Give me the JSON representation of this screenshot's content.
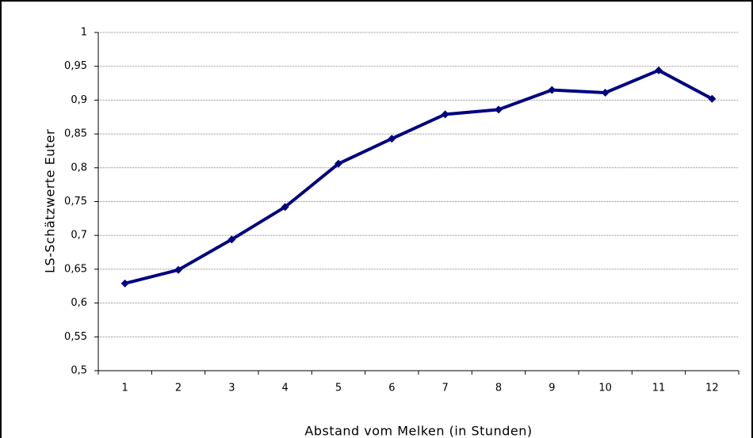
{
  "chart_data": {
    "type": "line",
    "categories": [
      "1",
      "2",
      "3",
      "4",
      "5",
      "6",
      "7",
      "8",
      "9",
      "10",
      "11",
      "12"
    ],
    "series": [
      {
        "name": "LS-Schätzwerte Euter",
        "color": "#000080",
        "values": [
          0.629,
          0.649,
          0.694,
          0.742,
          0.806,
          0.843,
          0.879,
          0.886,
          0.915,
          0.911,
          0.944,
          0.902
        ]
      }
    ],
    "ylim": [
      0.5,
      1
    ],
    "yticks": [
      {
        "value": 0.5,
        "label": "0,5"
      },
      {
        "value": 0.55,
        "label": "0,55"
      },
      {
        "value": 0.6,
        "label": "0,6"
      },
      {
        "value": 0.65,
        "label": "0,65"
      },
      {
        "value": 0.7,
        "label": "0,7"
      },
      {
        "value": 0.75,
        "label": "0,75"
      },
      {
        "value": 0.8,
        "label": "0,8"
      },
      {
        "value": 0.85,
        "label": "0,85"
      },
      {
        "value": 0.9,
        "label": "0,9"
      },
      {
        "value": 0.95,
        "label": "0,95"
      },
      1
    ],
    "x_label": "Abstand vom Melken (in Stunden)",
    "y_label": "LS-Schätzwerte  Euter",
    "grid": true
  }
}
